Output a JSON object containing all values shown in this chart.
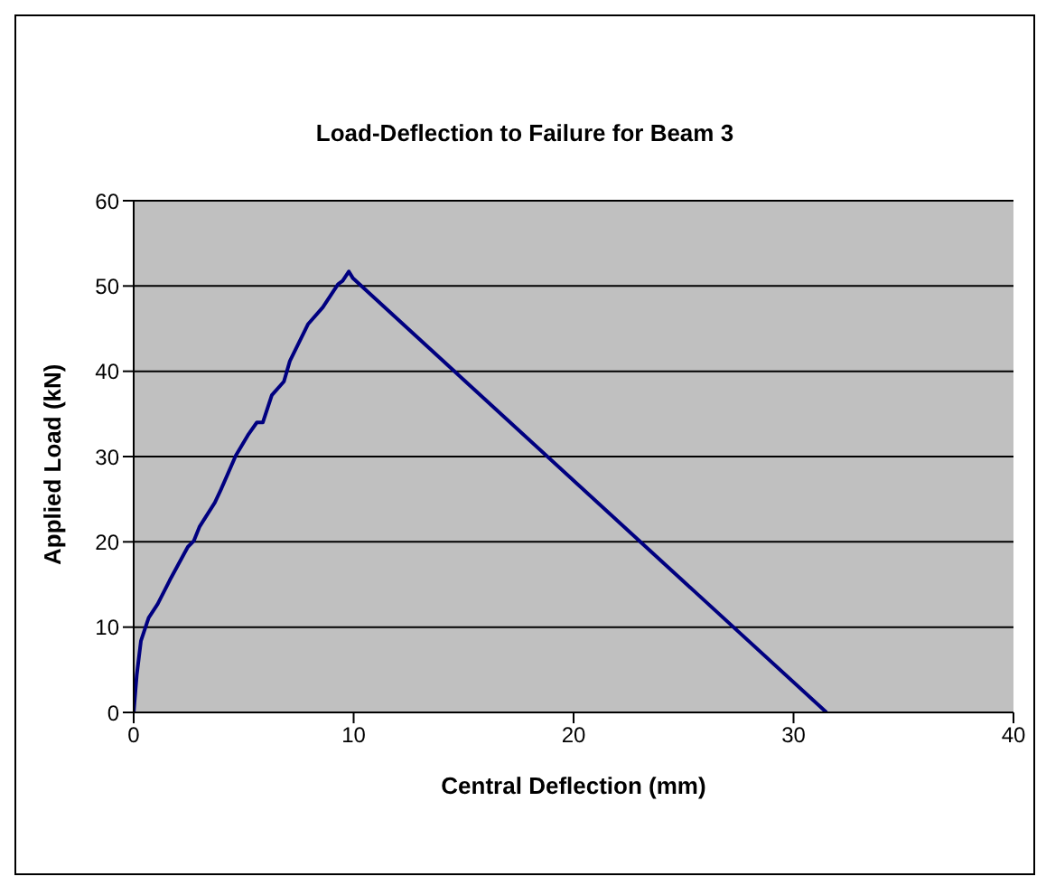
{
  "chart_data": {
    "type": "line",
    "title": "Load-Deflection to Failure for Beam 3",
    "xlabel": "Central Deflection (mm)",
    "ylabel": "Applied Load (kN)",
    "series": [
      {
        "color": "#000080",
        "x": [
          0,
          0.14,
          0.33,
          0.68,
          1.09,
          1.64,
          2.46,
          2.73,
          3.0,
          3.69,
          3.96,
          4.64,
          5.19,
          5.6,
          5.87,
          6.28,
          6.83,
          7.1,
          7.92,
          8.6,
          9.29,
          9.5,
          9.78,
          9.97,
          31.5
        ],
        "values": [
          0,
          4.4,
          8.4,
          11.1,
          12.7,
          15.5,
          19.4,
          20.1,
          21.8,
          24.6,
          26.1,
          30.1,
          32.5,
          34.0,
          34.0,
          37.2,
          38.8,
          41.2,
          45.5,
          47.5,
          50.2,
          50.6,
          51.7,
          50.9,
          0
        ]
      }
    ],
    "xlim": [
      0,
      40
    ],
    "xticks": [
      0,
      10,
      20,
      30,
      40
    ],
    "ylim": [
      0,
      60
    ],
    "yticks": [
      0,
      10,
      20,
      30,
      40,
      50,
      60
    ],
    "grid": "y",
    "marker": "none",
    "line_style": "solid"
  }
}
